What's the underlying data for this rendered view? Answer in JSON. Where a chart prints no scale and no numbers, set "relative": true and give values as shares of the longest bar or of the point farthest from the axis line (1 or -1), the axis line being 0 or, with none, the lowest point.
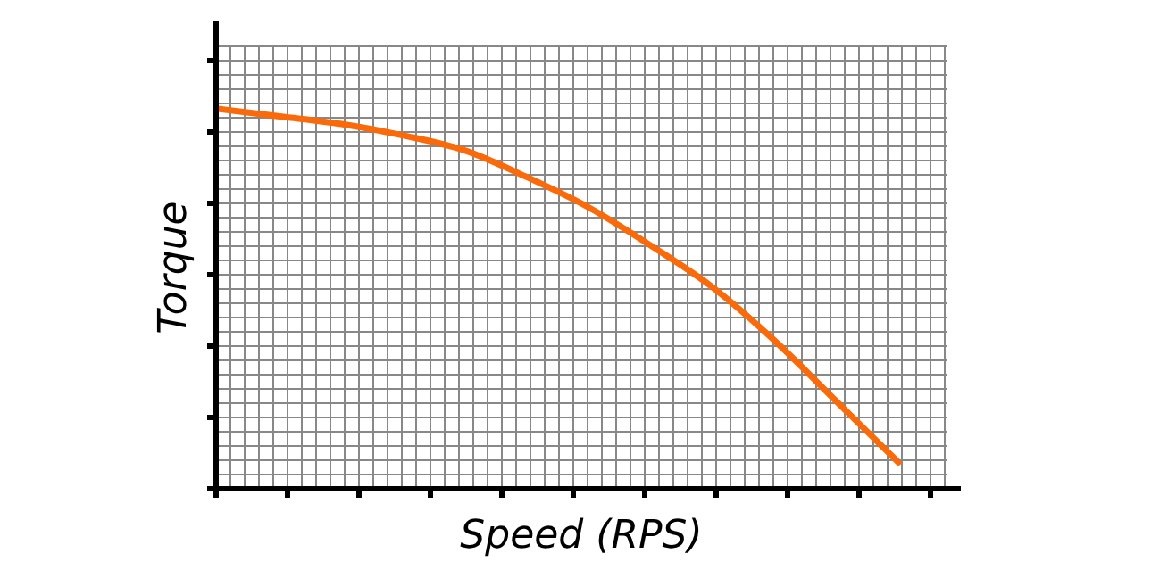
{
  "chart_data": {
    "type": "line",
    "xlabel": "Speed (RPS)",
    "ylabel": "Torque",
    "relative": true,
    "grid": true,
    "marker": "none",
    "line_style": "solid",
    "categories": [
      null,
      null,
      null,
      null,
      null,
      null,
      null,
      null,
      null,
      null,
      null,
      null
    ],
    "series": [
      {
        "color": "#fa6a0a",
        "values": [
          1,
          0.98,
          0.96,
          0.93,
          0.89,
          0.82,
          0.74,
          0.64,
          0.53,
          0.39,
          0.23,
          0.07
        ]
      }
    ]
  }
}
